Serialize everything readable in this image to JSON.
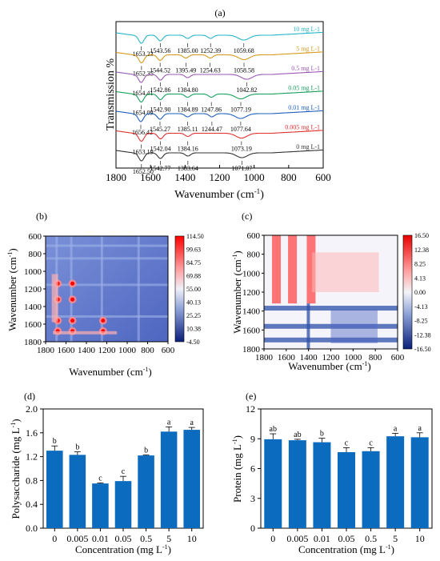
{
  "panels": {
    "a": {
      "label": "(a)",
      "xlabel": "Wavenumber (cm",
      "xlabel_sup": "-1",
      "xlabel_close": ")",
      "ylabel": "Transmission %",
      "xticks": [
        "1800",
        "1600",
        "1400",
        "1200",
        "1000",
        "800",
        "600"
      ]
    },
    "b": {
      "label": "(b)",
      "xlabel": "Wavenumber (cm",
      "ylabel": "Wavenumber (cm",
      "sup": "-1",
      "close": ")",
      "ticks": [
        "1800",
        "1600",
        "1400",
        "1200",
        "1000",
        "800",
        "600"
      ],
      "yticks": [
        "600",
        "800",
        "1000",
        "1200",
        "1400",
        "1600",
        "1800"
      ],
      "colorbar": [
        "114.50",
        "99.63",
        "84.75",
        "69.88",
        "55.00",
        "40.13",
        "25.25",
        "10.38",
        "-4.50"
      ]
    },
    "c": {
      "label": "(c)",
      "xlabel": "Wavenumber (cm",
      "ylabel": "Wavenumber (cm",
      "sup": "-1",
      "close": ")",
      "ticks": [
        "1800",
        "1600",
        "1400",
        "1200",
        "1000",
        "800",
        "600"
      ],
      "yticks": [
        "600",
        "800",
        "1000",
        "1200",
        "1400",
        "1600",
        "1800"
      ],
      "colorbar": [
        "16.50",
        "12.38",
        "8.25",
        "4.13",
        "0.00",
        "-4.13",
        "-8.25",
        "-12.38",
        "-16.50"
      ]
    },
    "d": {
      "label": "(d)",
      "xlabel": "Concentration (mg L",
      "ylabel": "Polysaccharide (mg L",
      "sup": "-1",
      "close": ")",
      "yticks": [
        "0.0",
        "0.4",
        "0.8",
        "1.2",
        "1.6",
        "2.0"
      ]
    },
    "e": {
      "label": "(e)",
      "xlabel": "Concentration (mg L",
      "ylabel": "Protein (mg L",
      "sup": "-1",
      "close": ")",
      "yticks": [
        "0",
        "3",
        "6",
        "9",
        "12"
      ]
    }
  },
  "chart_data": [
    {
      "id": "a",
      "type": "line",
      "x_range": [
        1800,
        600
      ],
      "series": [
        {
          "name": "10 mg L-1",
          "color": "#26b5c8",
          "peaks": [
            {
              "x": 1653.23,
              "label": "1653.23"
            },
            {
              "x": 1543.56,
              "label": "1543.56"
            },
            {
              "x": 1385.0,
              "label": "1385.00"
            },
            {
              "x": 1252.39,
              "label": "1252.39"
            },
            {
              "x": 1059.68,
              "label": "1059.68"
            }
          ]
        },
        {
          "name": "5 mg L-1",
          "color": "#d69a1e",
          "peaks": [
            {
              "x": 1652.35,
              "label": "1652.35"
            },
            {
              "x": 1544.52,
              "label": "1544.52"
            },
            {
              "x": 1395.49,
              "label": "1395.49"
            },
            {
              "x": 1254.63,
              "label": "1254.63"
            },
            {
              "x": 1058.58,
              "label": "1058.58"
            }
          ]
        },
        {
          "name": "0.5 mg L-1",
          "color": "#9b59b6",
          "peaks": [
            {
              "x": 1654.41,
              "label": "1654.41"
            },
            {
              "x": 1542.86,
              "label": "1542.86"
            },
            {
              "x": 1384.8,
              "label": "1384.80"
            },
            {
              "x": 1042.82,
              "label": "1042.82"
            }
          ]
        },
        {
          "name": "0.05 mg L-1",
          "color": "#17a05d",
          "peaks": [
            {
              "x": 1654.09,
              "label": "1654.09"
            },
            {
              "x": 1542.9,
              "label": "1542.90"
            },
            {
              "x": 1384.89,
              "label": "1384.89"
            },
            {
              "x": 1247.86,
              "label": "1247.86"
            },
            {
              "x": 1077.19,
              "label": "1077.19"
            }
          ]
        },
        {
          "name": "0.01 mg L-1",
          "color": "#1f5fbf",
          "peaks": [
            {
              "x": 1656.42,
              "label": "1656.42"
            },
            {
              "x": 1545.27,
              "label": "1545.27"
            },
            {
              "x": 1385.11,
              "label": "1385.11"
            },
            {
              "x": 1244.47,
              "label": "1244.47"
            },
            {
              "x": 1077.64,
              "label": "1077.64"
            }
          ]
        },
        {
          "name": "0.005 mg L-1",
          "color": "#e03030",
          "peaks": [
            {
              "x": 1653.19,
              "label": "1653.19"
            },
            {
              "x": 1542.04,
              "label": "1542.04"
            },
            {
              "x": 1384.16,
              "label": "1384.16"
            },
            {
              "x": 1073.19,
              "label": "1073.19"
            }
          ]
        },
        {
          "name": "0 mg L-1",
          "color": "#333333",
          "peaks": [
            {
              "x": 1652.5,
              "label": "1652.50"
            },
            {
              "x": 1542.77,
              "label": "1542.77"
            },
            {
              "x": 1383.64,
              "label": "1383.64"
            },
            {
              "x": 1071.07,
              "label": "1071.07"
            }
          ]
        }
      ]
    },
    {
      "id": "d",
      "type": "bar",
      "categories": [
        "0",
        "0.005",
        "0.01",
        "0.05",
        "0.5",
        "5",
        "10"
      ],
      "values": [
        1.3,
        1.23,
        0.75,
        0.79,
        1.22,
        1.62,
        1.65
      ],
      "errors": [
        0.08,
        0.05,
        0.01,
        0.08,
        0.01,
        0.08,
        0.04
      ],
      "letters": [
        "b",
        "b",
        "c",
        "c",
        "b",
        "a",
        "a"
      ],
      "ylim": [
        0,
        2.0
      ],
      "color": "#0b6cbf"
    },
    {
      "id": "e",
      "type": "bar",
      "categories": [
        "0",
        "0.005",
        "0.01",
        "0.05",
        "0.5",
        "5",
        "10"
      ],
      "values": [
        8.95,
        8.85,
        8.65,
        7.65,
        7.75,
        9.25,
        9.15
      ],
      "errors": [
        0.55,
        0.1,
        0.4,
        0.45,
        0.35,
        0.3,
        0.45
      ],
      "letters": [
        "ab",
        "ab",
        "b",
        "c",
        "c",
        "a",
        "a"
      ],
      "ylim": [
        0,
        12
      ],
      "color": "#0b6cbf"
    }
  ]
}
